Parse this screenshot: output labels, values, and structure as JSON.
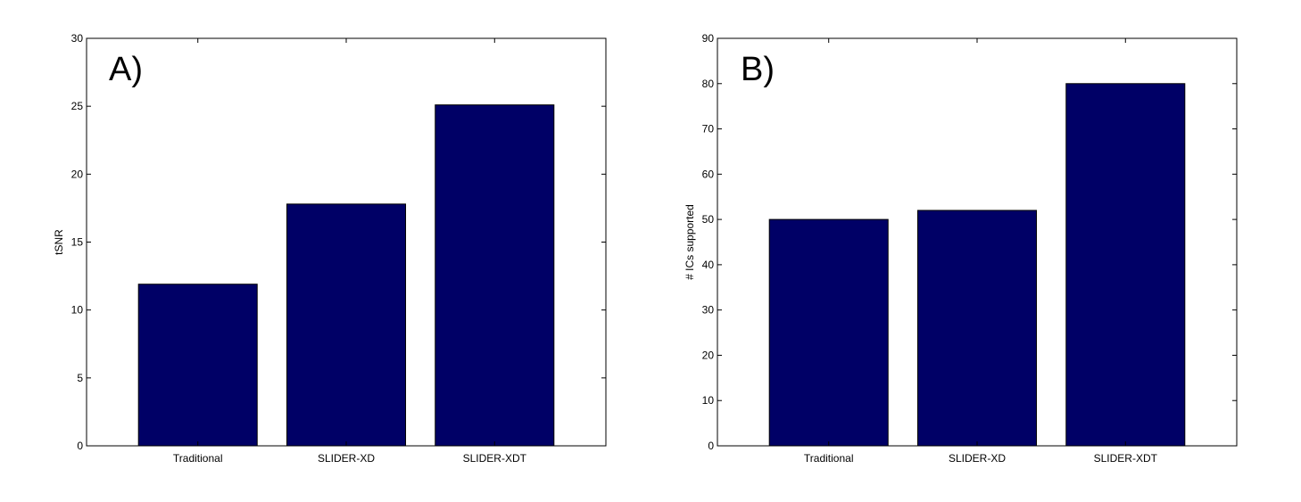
{
  "chart_data": [
    {
      "type": "bar",
      "panel_label": "A)",
      "categories": [
        "Traditional",
        "SLIDER-XD",
        "SLIDER-XDT"
      ],
      "values": [
        11.9,
        17.8,
        25.1
      ],
      "title": "",
      "xlabel": "",
      "ylabel": "tSNR",
      "ylim": [
        0,
        30
      ],
      "yticks": [
        0,
        5,
        10,
        15,
        20,
        25,
        30
      ],
      "bar_color": "#000066",
      "grid": false
    },
    {
      "type": "bar",
      "panel_label": "B)",
      "categories": [
        "Traditional",
        "SLIDER-XD",
        "SLIDER-XDT"
      ],
      "values": [
        50,
        52,
        80
      ],
      "title": "",
      "xlabel": "",
      "ylabel": "# ICs supported",
      "ylim": [
        0,
        90
      ],
      "yticks": [
        0,
        10,
        20,
        30,
        40,
        50,
        60,
        70,
        80,
        90
      ],
      "bar_color": "#000066",
      "grid": false
    }
  ]
}
